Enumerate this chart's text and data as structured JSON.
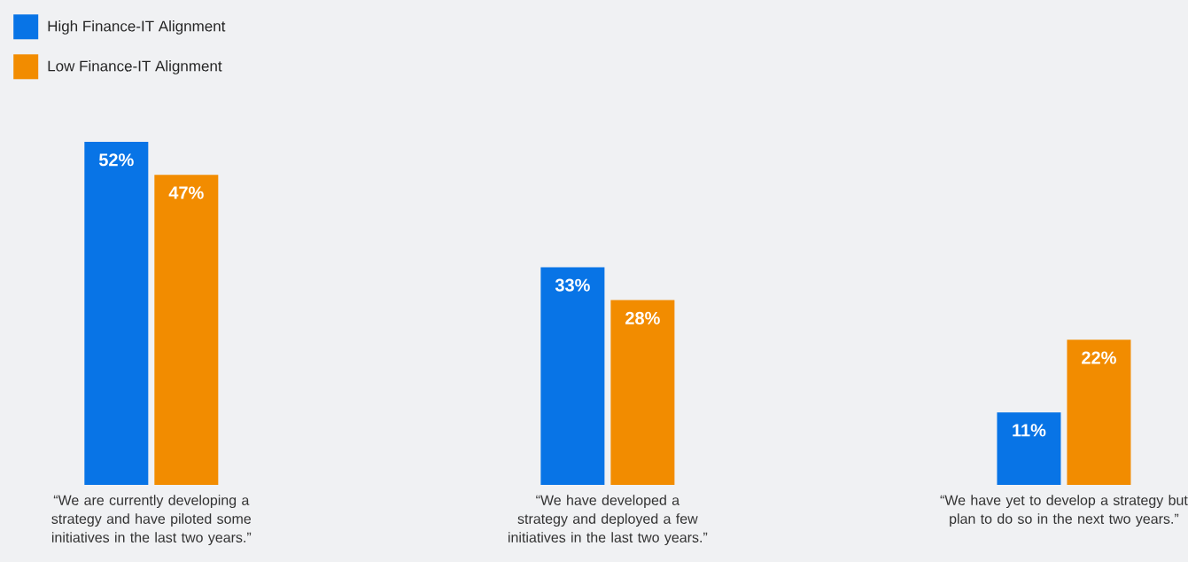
{
  "chart_data": {
    "type": "bar",
    "categories": [
      "“We are currently developing a strategy and have piloted some initiatives in the last two years.”",
      "“We have developed a strategy and deployed a few initiatives in the last two years.”",
      "“We have yet to develop a strategy but plan to do so in the next two years.”"
    ],
    "series": [
      {
        "name": "High Finance-IT Alignment",
        "color": "#0874e6",
        "values": [
          52,
          33,
          11
        ],
        "value_labels": [
          "52%",
          "33%",
          "11%"
        ]
      },
      {
        "name": "Low Finance-IT Alignment",
        "color": "#f28c00",
        "values": [
          47,
          28,
          22
        ],
        "value_labels": [
          "47%",
          "28%",
          "22%"
        ]
      }
    ],
    "legend": "top left"
  }
}
